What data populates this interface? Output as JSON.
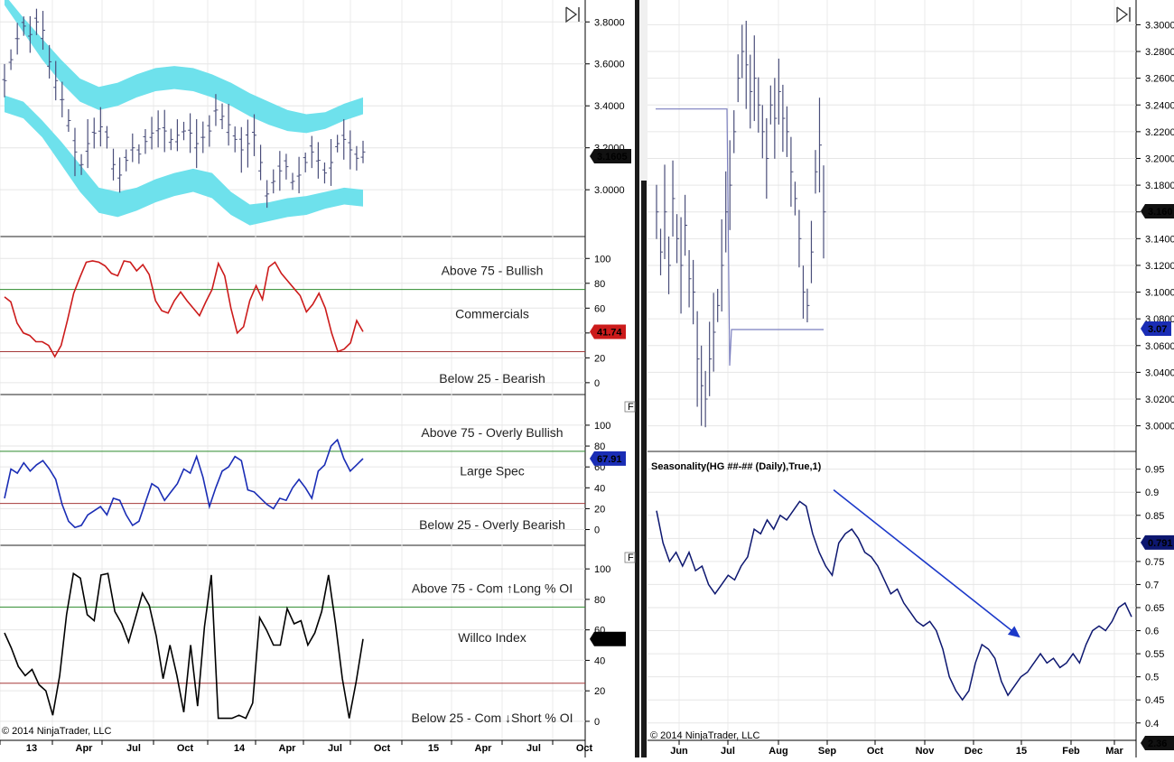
{
  "colors": {
    "band": "#6ee1ec",
    "price_bars": "#4a4e7a",
    "commercials": "#cc1b1b",
    "large_spec": "#1a2db5",
    "willco": "#000000",
    "seasonality": "#0d1770",
    "upper_ref": "#2e8b2e",
    "lower_ref": "#a53a3a",
    "arrow": "#1c39c9",
    "stop_line": "#7b7fbf"
  },
  "left_panel": {
    "copyright": "© 2014 NinjaTrader, LLC",
    "x_labels": [
      "13",
      "Apr",
      "Jul",
      "Oct",
      "14",
      "Apr",
      "Jul",
      "Oct",
      "15",
      "Apr",
      "Jul",
      "Oct"
    ],
    "charts": [
      {
        "id": "price",
        "type": "bar",
        "icon": "play-to-end-icon",
        "y_ticks": [
          "3.8000",
          "3.6000",
          "3.4000",
          "3.2000",
          "3.0000"
        ],
        "y_range": [
          2.82,
          3.87
        ],
        "current_value": "3.1605",
        "current_color": "#111111",
        "band_upper_top": [
          3.93,
          3.82,
          3.72,
          3.62,
          3.53,
          3.49,
          3.51,
          3.55,
          3.58,
          3.59,
          3.58,
          3.55,
          3.51,
          3.46,
          3.42,
          3.38,
          3.36,
          3.37,
          3.41,
          3.44
        ],
        "band_upper_bottom": [
          3.88,
          3.75,
          3.62,
          3.51,
          3.42,
          3.38,
          3.4,
          3.44,
          3.47,
          3.48,
          3.47,
          3.44,
          3.4,
          3.35,
          3.31,
          3.28,
          3.27,
          3.29,
          3.33,
          3.36
        ],
        "band_lower_top": [
          3.45,
          3.42,
          3.33,
          3.23,
          3.12,
          3.01,
          2.99,
          3.01,
          3.05,
          3.08,
          3.1,
          3.08,
          2.99,
          2.93,
          2.94,
          2.96,
          2.97,
          2.99,
          3.01,
          3.0
        ],
        "band_lower_bottom": [
          3.37,
          3.34,
          3.25,
          3.12,
          2.99,
          2.89,
          2.87,
          2.9,
          2.94,
          2.97,
          2.99,
          2.96,
          2.88,
          2.83,
          2.85,
          2.87,
          2.88,
          2.91,
          2.93,
          2.92
        ],
        "values": [
          3.52,
          3.62,
          3.72,
          3.78,
          3.74,
          3.8,
          3.76,
          3.61,
          3.52,
          3.43,
          3.33,
          3.18,
          3.12,
          3.22,
          3.27,
          3.3,
          3.25,
          3.12,
          3.07,
          3.14,
          3.2,
          3.17,
          3.23,
          3.27,
          3.29,
          3.28,
          3.24,
          3.26,
          3.28,
          3.27,
          3.22,
          3.25,
          3.28,
          3.38,
          3.35,
          3.31,
          3.24,
          3.19,
          3.22,
          3.26,
          3.13,
          2.98,
          3.04,
          3.09,
          3.11,
          3.04,
          3.07,
          3.13,
          3.18,
          3.14,
          3.08,
          3.13,
          3.22,
          3.24,
          3.19,
          3.15,
          3.18
        ]
      },
      {
        "id": "commercials",
        "type": "line",
        "icon": "f-icon",
        "y_ticks": [
          "100",
          "80",
          "60",
          "40",
          "20",
          "0"
        ],
        "y_range": [
          -3,
          106
        ],
        "upper": 75,
        "lower": 25,
        "label_upper": "Above 75 - Bullish",
        "label_mid": "Commercials",
        "label_lower": "Below 25 - Bearish",
        "current_value": "41.74",
        "current_color": "#cc1b1b",
        "values": [
          69,
          65,
          48,
          40,
          38,
          33,
          33,
          30,
          21,
          30,
          50,
          72,
          85,
          97,
          98,
          97,
          94,
          88,
          86,
          98,
          97,
          90,
          95,
          87,
          66,
          58,
          56,
          66,
          73,
          66,
          60,
          54,
          65,
          75,
          96,
          86,
          60,
          40,
          45,
          66,
          78,
          67,
          93,
          97,
          88,
          82,
          76,
          70,
          57,
          63,
          72,
          60,
          40,
          25,
          27,
          32,
          50,
          41
        ]
      },
      {
        "id": "large_spec",
        "type": "line",
        "icon": "f-icon",
        "y_ticks": [
          "100",
          "80",
          "60",
          "40",
          "20",
          "0"
        ],
        "y_range": [
          -3,
          106
        ],
        "upper": 75,
        "lower": 25,
        "label_upper": "Above 75 - Overly Bullish",
        "label_mid": "Large Spec",
        "label_lower": "Below 25 - Overly Bearish",
        "current_value": "67.91",
        "current_color": "#1a2db5",
        "values": [
          30,
          58,
          54,
          64,
          56,
          62,
          66,
          58,
          48,
          24,
          8,
          2,
          4,
          14,
          18,
          22,
          14,
          30,
          28,
          14,
          4,
          8,
          26,
          44,
          40,
          28,
          36,
          44,
          58,
          54,
          70,
          50,
          22,
          40,
          56,
          60,
          70,
          66,
          38,
          36,
          30,
          24,
          20,
          30,
          28,
          40,
          48,
          40,
          30,
          56,
          62,
          80,
          86,
          68,
          56,
          62,
          68
        ]
      },
      {
        "id": "willco",
        "type": "line",
        "icon": "",
        "y_ticks": [
          "100",
          "80",
          "60",
          "40",
          "20",
          "0"
        ],
        "y_range": [
          -3,
          106
        ],
        "upper": 75,
        "lower": 25,
        "label_upper": "Above 75 - Com ↑Long % OI",
        "label_mid": "Willco Index",
        "label_lower": "Below 25 - Com ↓Short % OI",
        "current_value": "51.18",
        "current_color": "#000000",
        "values": [
          58,
          48,
          36,
          30,
          34,
          24,
          20,
          4,
          30,
          70,
          97,
          94,
          70,
          66,
          96,
          97,
          72,
          64,
          52,
          68,
          84,
          76,
          56,
          28,
          50,
          30,
          6,
          50,
          10,
          62,
          96,
          2,
          2,
          2,
          4,
          2,
          12,
          68,
          60,
          50,
          50,
          74,
          64,
          66,
          50,
          58,
          72,
          96,
          64,
          28,
          2,
          26,
          54
        ]
      }
    ]
  },
  "right_panel": {
    "copyright": "© 2014 NinjaTrader, LLC",
    "x_labels": [
      "Jun",
      "Jul",
      "Aug",
      "Sep",
      "Oct",
      "Nov",
      "Dec",
      "15",
      "Feb",
      "Mar"
    ],
    "price": {
      "type": "bar",
      "icon": "play-to-end-icon",
      "y_ticks": [
        "3.3000",
        "3.2800",
        "3.2600",
        "3.2400",
        "3.2200",
        "3.2000",
        "3.1800",
        "3.1600",
        "3.1400",
        "3.1200",
        "3.1000",
        "3.0800",
        "3.0600",
        "3.0400",
        "3.0200",
        "3.0000"
      ],
      "y_range": [
        2.993,
        3.305
      ],
      "current_value": "3.160",
      "current_color": "#111111",
      "stop_value": "3.07",
      "stop_color": "#1a2db5",
      "stop_upper": 3.237,
      "stop_lower": 3.072,
      "values": [
        3.16,
        3.13,
        3.16,
        3.12,
        3.17,
        3.14,
        3.12,
        3.15,
        3.11,
        3.1,
        3.05,
        3.03,
        3.02,
        3.05,
        3.07,
        3.09,
        3.12,
        3.16,
        3.18,
        3.22,
        3.26,
        3.28,
        3.27,
        3.25,
        3.26,
        3.24,
        3.22,
        3.2,
        3.24,
        3.23,
        3.25,
        3.23,
        3.22,
        3.19,
        3.17,
        3.14,
        3.1,
        3.09,
        3.13,
        3.19,
        3.21,
        3.16
      ]
    },
    "seasonality": {
      "type": "line",
      "title": "Seasonality(HG ##-## (Daily),True,1)",
      "y_ticks": [
        "0.95",
        "0.9",
        "0.85",
        "0.8",
        "0.75",
        "0.7",
        "0.65",
        "0.6",
        "0.55",
        "0.5",
        "0.45",
        "0.4"
      ],
      "y_range": [
        0.378,
        0.965
      ],
      "current_value": "0.791",
      "current_color": "#0d1770",
      "bottom_value": "2.36",
      "arrow_from": [
        0.37,
        0.905
      ],
      "arrow_to": [
        0.76,
        0.585
      ],
      "values": [
        0.86,
        0.79,
        0.75,
        0.77,
        0.74,
        0.77,
        0.73,
        0.74,
        0.7,
        0.68,
        0.7,
        0.72,
        0.71,
        0.74,
        0.76,
        0.82,
        0.81,
        0.84,
        0.82,
        0.85,
        0.84,
        0.86,
        0.88,
        0.87,
        0.81,
        0.77,
        0.74,
        0.72,
        0.79,
        0.81,
        0.82,
        0.8,
        0.77,
        0.76,
        0.74,
        0.71,
        0.68,
        0.69,
        0.66,
        0.64,
        0.62,
        0.61,
        0.62,
        0.6,
        0.56,
        0.5,
        0.47,
        0.45,
        0.47,
        0.53,
        0.57,
        0.56,
        0.54,
        0.49,
        0.46,
        0.48,
        0.5,
        0.51,
        0.53,
        0.55,
        0.53,
        0.54,
        0.52,
        0.53,
        0.55,
        0.53,
        0.57,
        0.6,
        0.61,
        0.6,
        0.62,
        0.65,
        0.66,
        0.63
      ]
    }
  }
}
